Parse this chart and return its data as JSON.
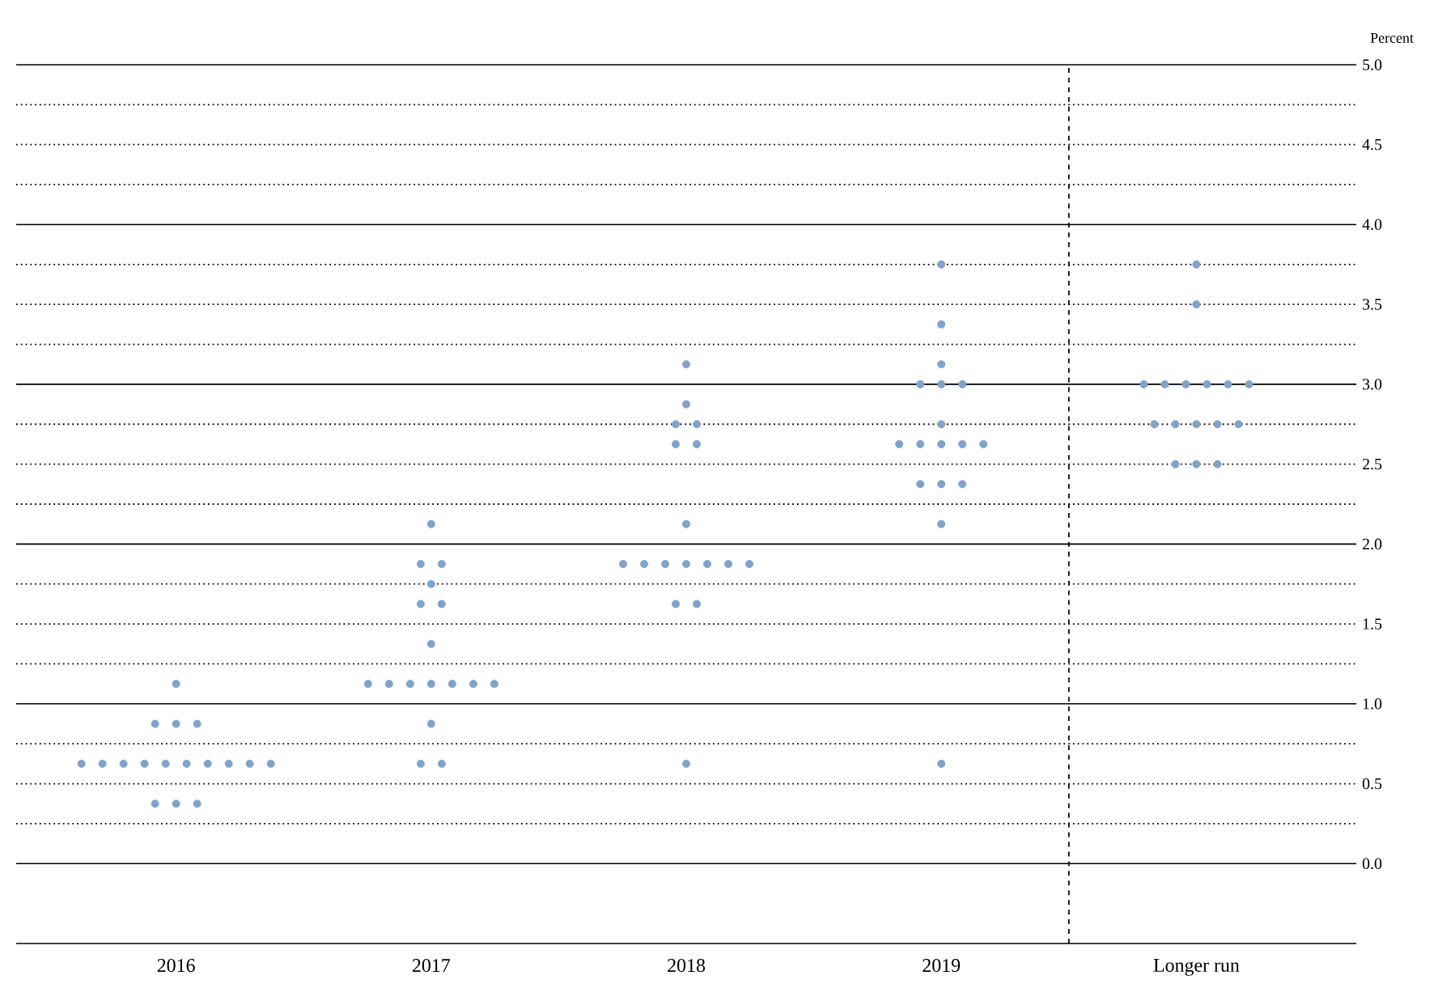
{
  "chart_data": {
    "type": "scatter",
    "ylabel": "Percent",
    "categories": [
      "2016",
      "2017",
      "2018",
      "2019",
      "Longer run"
    ],
    "series": [
      {
        "color": "#7fa3cb",
        "values": [
          1.125,
          2.125,
          3.125,
          3.75,
          3.75
        ]
      },
      {
        "color": "#7fa3cb",
        "values": [
          0.875,
          1.875,
          2.875,
          3.375,
          3.5
        ]
      },
      {
        "color": "#7fa3cb",
        "values": [
          0.875,
          1.875,
          2.75,
          3.125,
          3
        ]
      },
      {
        "color": "#7fa3cb",
        "values": [
          0.875,
          1.75,
          2.75,
          3,
          3
        ]
      },
      {
        "color": "#7fa3cb",
        "values": [
          0.625,
          1.625,
          2.625,
          3,
          3
        ]
      },
      {
        "color": "#7fa3cb",
        "values": [
          0.625,
          1.625,
          2.625,
          3,
          3
        ]
      },
      {
        "color": "#7fa3cb",
        "values": [
          0.625,
          1.375,
          2.125,
          2.75,
          3
        ]
      },
      {
        "color": "#7fa3cb",
        "values": [
          0.625,
          1.125,
          1.875,
          2.625,
          3
        ]
      },
      {
        "color": "#7fa3cb",
        "values": [
          0.625,
          1.125,
          1.875,
          2.625,
          2.75
        ]
      },
      {
        "color": "#7fa3cb",
        "values": [
          0.625,
          1.125,
          1.875,
          2.625,
          2.75
        ]
      },
      {
        "color": "#7fa3cb",
        "values": [
          0.625,
          1.125,
          1.875,
          2.625,
          2.75
        ]
      },
      {
        "color": "#7fa3cb",
        "values": [
          0.625,
          1.125,
          1.875,
          2.625,
          2.75
        ]
      },
      {
        "color": "#7fa3cb",
        "values": [
          0.625,
          1.125,
          1.875,
          2.375,
          2.75
        ]
      },
      {
        "color": "#7fa3cb",
        "values": [
          0.625,
          1.125,
          1.875,
          2.375,
          2.5
        ]
      },
      {
        "color": "#7fa3cb",
        "values": [
          0.375,
          0.875,
          1.625,
          2.375,
          2.5
        ]
      },
      {
        "color": "#7fa3cb",
        "values": [
          0.375,
          0.625,
          1.625,
          2.125,
          2.5
        ]
      },
      {
        "color": "#7fa3cb",
        "values": [
          0.375,
          0.625,
          0.625,
          0.625,
          null
        ]
      }
    ],
    "marker": "circle",
    "ylim": [
      -0.5,
      5.0
    ],
    "yticks": [
      {
        "value": 0,
        "label": "0.0"
      },
      {
        "value": 0.25,
        "label": null
      },
      {
        "value": 0.5,
        "label": "0.5"
      },
      {
        "value": 0.75,
        "label": null
      },
      {
        "value": 1,
        "label": "1.0"
      },
      {
        "value": 1.25,
        "label": null
      },
      {
        "value": 1.5,
        "label": "1.5"
      },
      {
        "value": 1.75,
        "label": null
      },
      {
        "value": 2,
        "label": "2.0"
      },
      {
        "value": 2.25,
        "label": null
      },
      {
        "value": 2.5,
        "label": "2.5"
      },
      {
        "value": 2.75,
        "label": null
      },
      {
        "value": 3,
        "label": "3.0"
      },
      {
        "value": 3.25,
        "label": null
      },
      {
        "value": 3.5,
        "label": "3.5"
      },
      {
        "value": 3.75,
        "label": null
      },
      {
        "value": 4,
        "label": "4.0"
      },
      {
        "value": 4.25,
        "label": null
      },
      {
        "value": 4.5,
        "label": "4.5"
      },
      {
        "value": 4.75,
        "label": null
      },
      {
        "value": 5,
        "label": "5.0"
      }
    ],
    "grid": "y"
  }
}
